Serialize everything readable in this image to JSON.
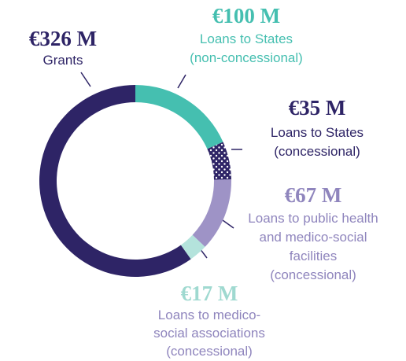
{
  "chart_data": {
    "type": "donut",
    "categories": [
      [
        "Loans to States",
        "(non-concessional)"
      ],
      [
        "Loans to States",
        "(concessional)"
      ],
      [
        "Loans to public health",
        "and medico-social",
        "facilities",
        "(concessional)"
      ],
      [
        "Loans to medico-",
        "social associations",
        "(concessional)"
      ],
      [
        "Grants"
      ]
    ],
    "values": [
      100,
      35,
      67,
      17,
      326
    ],
    "value_labels": [
      "€100 M",
      "€35 M",
      "€67 M",
      "€17 M",
      "€326 M"
    ],
    "colors": [
      "#45bfb0",
      "#2e2466",
      "#9e93c6",
      "#b4e3dc",
      "#2e2466"
    ],
    "patterns": [
      null,
      "dots",
      null,
      null,
      null
    ]
  }
}
